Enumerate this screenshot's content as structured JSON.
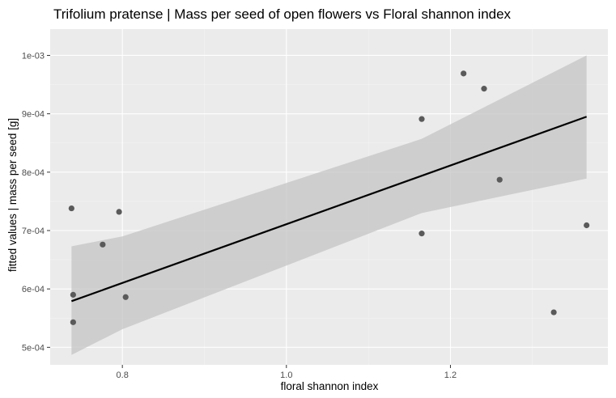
{
  "chart_data": {
    "type": "scatter",
    "title": "Trifolium pratense | Mass per seed of open flowers vs Floral shannon index",
    "xlabel": "floral shannon index",
    "ylabel": "fitted values | mass per seed [g]",
    "xlim": [
      0.712,
      1.392
    ],
    "ylim": [
      0.00047,
      0.001045
    ],
    "x_ticks": [
      {
        "value": 0.8,
        "label": "0.8"
      },
      {
        "value": 1.0,
        "label": "1.0"
      },
      {
        "value": 1.2,
        "label": "1.2"
      }
    ],
    "y_ticks": [
      {
        "value": 0.0005,
        "label": "5e-04"
      },
      {
        "value": 0.0006,
        "label": "6e-04"
      },
      {
        "value": 0.0007,
        "label": "7e-04"
      },
      {
        "value": 0.0008,
        "label": "8e-04"
      },
      {
        "value": 0.0009,
        "label": "9e-04"
      },
      {
        "value": 0.001,
        "label": "1e-03"
      }
    ],
    "grid": true,
    "points": [
      {
        "x": 0.738,
        "y": 0.000738
      },
      {
        "x": 0.74,
        "y": 0.00059
      },
      {
        "x": 0.74,
        "y": 0.000543
      },
      {
        "x": 0.776,
        "y": 0.000676
      },
      {
        "x": 0.796,
        "y": 0.000732
      },
      {
        "x": 0.804,
        "y": 0.000586
      },
      {
        "x": 1.165,
        "y": 0.000891
      },
      {
        "x": 1.165,
        "y": 0.000695
      },
      {
        "x": 1.216,
        "y": 0.000969
      },
      {
        "x": 1.241,
        "y": 0.000943
      },
      {
        "x": 1.26,
        "y": 0.000787
      },
      {
        "x": 1.326,
        "y": 0.00056
      },
      {
        "x": 1.366,
        "y": 0.000709
      }
    ],
    "fit_line": {
      "x": [
        0.738,
        1.366
      ],
      "y": [
        0.000579,
        0.000895
      ]
    },
    "confidence_band": {
      "x": [
        0.738,
        0.8,
        1.165,
        1.366
      ],
      "lower": [
        0.000487,
        0.000531,
        0.00073,
        0.000789
      ],
      "upper": [
        0.000673,
        0.00069,
        0.000857,
        0.001
      ]
    },
    "colors": {
      "panel": "#ebebeb",
      "grid_major": "#ffffff",
      "grid_minor": "#f4f4f4",
      "points": "#5a5a5a",
      "line": "#000000",
      "band": "#c4c4c4"
    }
  }
}
